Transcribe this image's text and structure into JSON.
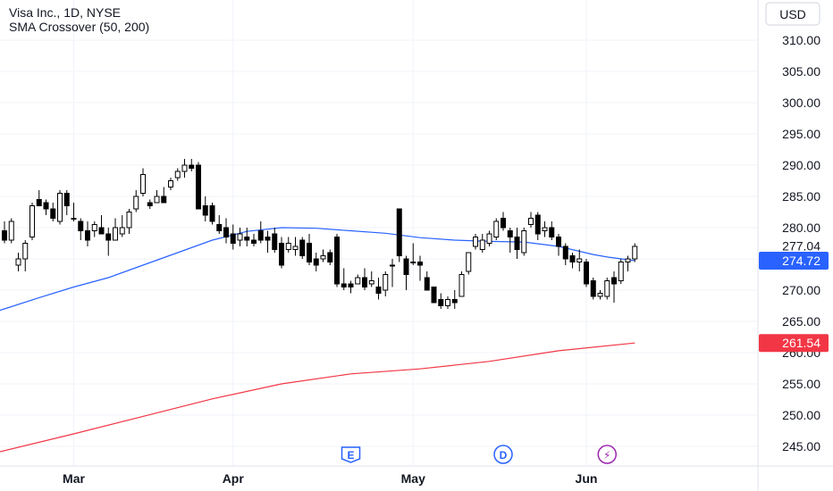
{
  "header": {
    "symbol": "Visa Inc., 1D, NYSE",
    "indicator": "SMA Crossover (50, 200)"
  },
  "currency": {
    "label": "USD"
  },
  "price_tags": {
    "last_price": {
      "label": "277.04",
      "value": 277.04
    },
    "sma50": {
      "label": "274.72",
      "value": 274.72,
      "color": "#2962ff"
    },
    "sma200": {
      "label": "261.54",
      "value": 261.54,
      "color": "#f23645"
    }
  },
  "events": [
    {
      "letter": "E",
      "name": "earnings",
      "index": 50,
      "color": "#2962ff"
    },
    {
      "letter": "D",
      "name": "dividend",
      "index": 72,
      "color": "#2962ff"
    },
    {
      "letter": "⚡",
      "name": "split",
      "index": 87,
      "color": "#9c27b0"
    }
  ],
  "chart_data": {
    "type": "candlestick",
    "ylim": [
      242,
      313
    ],
    "y_ticks": [
      "310.00",
      "305.00",
      "300.00",
      "295.00",
      "290.00",
      "285.00",
      "280.00",
      "275.00",
      "270.00",
      "265.00",
      "260.00",
      "255.00",
      "250.00",
      "245.00"
    ],
    "x_ticks": [
      {
        "label": "Mar",
        "index": 10
      },
      {
        "label": "Apr",
        "index": 33
      },
      {
        "label": "May",
        "index": 59
      },
      {
        "label": "Jun",
        "index": 84
      }
    ],
    "up_color": "#ffffff",
    "down_color": "#000000",
    "candles": [
      [
        279.5,
        281.0,
        277.5,
        278.0
      ],
      [
        278.0,
        281.5,
        277.5,
        281.0
      ],
      [
        274.0,
        276.0,
        273.0,
        275.0
      ],
      [
        275.0,
        278.0,
        273.0,
        277.5
      ],
      [
        278.5,
        284.0,
        278.0,
        283.5
      ],
      [
        284.5,
        286.0,
        283.5,
        283.5
      ],
      [
        284.0,
        284.5,
        282.0,
        283.0
      ],
      [
        283.0,
        284.0,
        281.0,
        281.5
      ],
      [
        281.0,
        286.0,
        280.5,
        285.5
      ],
      [
        285.5,
        286.0,
        282.0,
        283.5
      ],
      [
        281.5,
        284.0,
        281.0,
        281.5
      ],
      [
        281.0,
        281.5,
        278.0,
        279.5
      ],
      [
        279.5,
        281.0,
        277.0,
        278.0
      ],
      [
        279.5,
        281.0,
        278.5,
        280.5
      ],
      [
        280.0,
        282.0,
        279.0,
        279.0
      ],
      [
        279.0,
        280.0,
        275.5,
        278.0
      ],
      [
        278.0,
        281.5,
        278.0,
        280.0
      ],
      [
        279.0,
        282.0,
        278.5,
        280.0
      ],
      [
        280.0,
        283.0,
        279.0,
        282.5
      ],
      [
        283.0,
        286.0,
        282.5,
        285.0
      ],
      [
        285.5,
        289.5,
        285.0,
        288.5
      ],
      [
        284.0,
        284.5,
        283.0,
        283.5
      ],
      [
        284.0,
        286.0,
        284.0,
        285.0
      ],
      [
        285.0,
        286.5,
        284.0,
        284.0
      ],
      [
        286.5,
        288.0,
        286.0,
        287.5
      ],
      [
        288.0,
        289.5,
        287.5,
        289.0
      ],
      [
        289.0,
        291.0,
        288.0,
        290.0
      ],
      [
        290.0,
        291.0,
        289.0,
        289.5
      ],
      [
        290.0,
        290.5,
        283.0,
        283.0
      ],
      [
        283.5,
        285.0,
        281.0,
        282.0
      ],
      [
        283.5,
        284.0,
        280.5,
        281.0
      ],
      [
        280.5,
        282.0,
        279.0,
        279.5
      ],
      [
        280.0,
        281.5,
        277.5,
        278.5
      ],
      [
        279.0,
        280.5,
        276.5,
        277.5
      ],
      [
        278.0,
        280.0,
        277.0,
        279.0
      ],
      [
        278.5,
        280.0,
        277.0,
        278.0
      ],
      [
        278.0,
        279.0,
        277.0,
        277.5
      ],
      [
        279.5,
        281.0,
        277.5,
        278.0
      ],
      [
        278.5,
        279.5,
        276.0,
        278.0
      ],
      [
        279.0,
        280.0,
        276.0,
        276.5
      ],
      [
        277.5,
        278.5,
        273.5,
        274.0
      ],
      [
        276.5,
        278.5,
        276.0,
        277.5
      ],
      [
        276.5,
        278.5,
        275.5,
        277.0
      ],
      [
        278.0,
        278.5,
        275.0,
        275.5
      ],
      [
        277.5,
        279.0,
        274.0,
        274.5
      ],
      [
        275.0,
        276.0,
        273.0,
        274.0
      ],
      [
        275.0,
        276.5,
        274.5,
        275.5
      ],
      [
        276.0,
        276.5,
        274.0,
        274.5
      ],
      [
        278.5,
        279.0,
        270.5,
        271.0
      ],
      [
        271.0,
        273.5,
        270.0,
        270.5
      ],
      [
        271.0,
        271.5,
        269.5,
        270.5
      ],
      [
        271.0,
        272.5,
        271.0,
        272.0
      ],
      [
        272.0,
        273.5,
        270.0,
        270.5
      ],
      [
        271.0,
        273.0,
        270.5,
        271.5
      ],
      [
        270.5,
        272.0,
        268.5,
        269.5
      ],
      [
        270.0,
        273.0,
        269.0,
        272.5
      ],
      [
        274.0,
        275.0,
        270.5,
        274.0
      ],
      [
        283.0,
        283.0,
        274.5,
        275.5
      ],
      [
        275.0,
        275.5,
        270.0,
        272.5
      ],
      [
        274.5,
        277.5,
        274.0,
        274.5
      ],
      [
        274.5,
        275.5,
        271.5,
        274.0
      ],
      [
        272.0,
        273.0,
        270.0,
        270.0
      ],
      [
        270.5,
        270.5,
        268.0,
        268.0
      ],
      [
        268.5,
        269.5,
        267.0,
        267.5
      ],
      [
        267.5,
        269.0,
        267.0,
        268.5
      ],
      [
        268.5,
        270.0,
        267.0,
        268.0
      ],
      [
        269.0,
        273.0,
        269.0,
        272.5
      ],
      [
        273.0,
        276.0,
        272.5,
        276.0
      ],
      [
        277.0,
        279.0,
        276.5,
        278.5
      ],
      [
        276.5,
        279.0,
        276.0,
        278.0
      ],
      [
        277.5,
        279.5,
        277.0,
        279.0
      ],
      [
        278.5,
        281.5,
        278.0,
        281.0
      ],
      [
        281.5,
        282.5,
        279.5,
        280.0
      ],
      [
        279.5,
        280.0,
        276.0,
        278.5
      ],
      [
        278.5,
        280.0,
        275.0,
        276.5
      ],
      [
        276.0,
        280.0,
        275.5,
        279.5
      ],
      [
        280.5,
        282.5,
        280.0,
        281.5
      ],
      [
        282.0,
        282.5,
        278.0,
        279.0
      ],
      [
        279.5,
        281.0,
        278.5,
        280.0
      ],
      [
        280.0,
        281.0,
        278.0,
        278.5
      ],
      [
        278.5,
        279.0,
        275.5,
        277.0
      ],
      [
        277.0,
        277.5,
        274.0,
        275.0
      ],
      [
        275.5,
        276.0,
        273.5,
        274.5
      ],
      [
        274.5,
        276.5,
        273.0,
        275.0
      ],
      [
        274.5,
        275.0,
        270.5,
        271.0
      ],
      [
        271.5,
        272.0,
        268.5,
        269.0
      ],
      [
        269.0,
        270.0,
        268.5,
        269.5
      ],
      [
        269.0,
        272.0,
        268.5,
        271.5
      ],
      [
        272.0,
        273.0,
        268.0,
        271.0
      ],
      [
        271.5,
        275.0,
        271.0,
        274.5
      ],
      [
        274.5,
        275.5,
        273.0,
        275.0
      ],
      [
        275.0,
        277.5,
        274.5,
        277.0
      ]
    ],
    "sma50_points": [
      [
        -3,
        266.0
      ],
      [
        0,
        267.0
      ],
      [
        5,
        268.8
      ],
      [
        10,
        270.5
      ],
      [
        15,
        272.0
      ],
      [
        20,
        274.0
      ],
      [
        25,
        276.0
      ],
      [
        30,
        278.0
      ],
      [
        35,
        279.4
      ],
      [
        40,
        280.0
      ],
      [
        45,
        279.9
      ],
      [
        50,
        279.5
      ],
      [
        55,
        279.1
      ],
      [
        60,
        278.4
      ],
      [
        65,
        278.0
      ],
      [
        70,
        277.8
      ],
      [
        75,
        277.7
      ],
      [
        80,
        277.0
      ],
      [
        85,
        275.7
      ],
      [
        87,
        275.3
      ],
      [
        91,
        274.72
      ]
    ],
    "sma200_points": [
      [
        -3,
        243.5
      ],
      [
        10,
        247.0
      ],
      [
        20,
        249.8
      ],
      [
        30,
        252.6
      ],
      [
        40,
        255.0
      ],
      [
        50,
        256.6
      ],
      [
        60,
        257.4
      ],
      [
        70,
        258.6
      ],
      [
        80,
        260.3
      ],
      [
        91,
        261.54
      ]
    ]
  }
}
